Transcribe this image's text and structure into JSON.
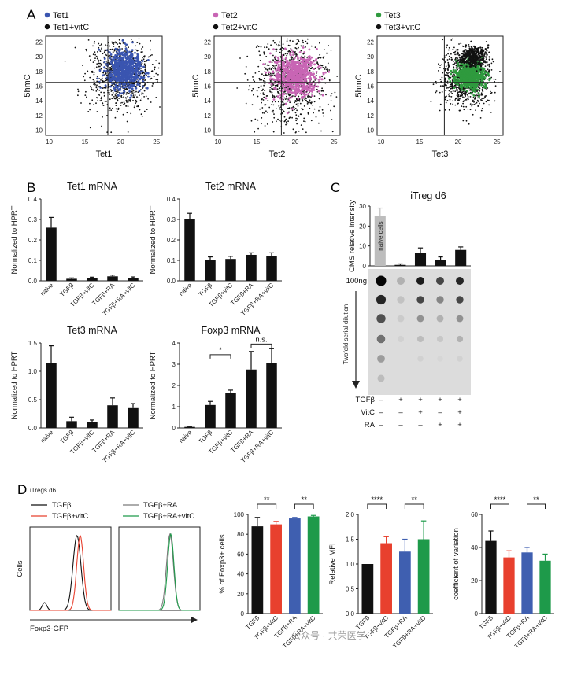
{
  "panels": {
    "a": "A",
    "b": "B",
    "c": "C",
    "d": "D"
  },
  "colors": {
    "tet1": "#3a55b0",
    "tet2": "#c865b4",
    "tet3": "#2f9a3e",
    "black": "#111111",
    "red": "#e8402e",
    "blue": "#3f5fb0",
    "green": "#1e9a4a",
    "naive_bar": "#bdbdbd",
    "blot_bg": "#dcdcdc"
  },
  "panel_a": {
    "plots": [
      {
        "legend_tet": "Tet1",
        "legend_vitc": "Tet1+vitC",
        "xlabel": "Tet1",
        "ylabel": "5hmC",
        "color_key": "tet1"
      },
      {
        "legend_tet": "Tet2",
        "legend_vitc": "Tet2+vitC",
        "xlabel": "Tet2",
        "ylabel": "5hmC",
        "color_key": "tet2"
      },
      {
        "legend_tet": "Tet3",
        "legend_vitc": "Tet3+vitC",
        "xlabel": "Tet3",
        "ylabel": "5hmC",
        "color_key": "tet3"
      }
    ],
    "xticks": [
      "10",
      "15",
      "20",
      "25"
    ],
    "yticks": [
      "10",
      "12",
      "14",
      "16",
      "18",
      "20",
      "22"
    ]
  },
  "panel_c": {
    "title": "iTreg d6",
    "ylabel": "CMS relative intensity",
    "naive_label": "naive cells",
    "dose_label": "100ng",
    "dilution_label": "Twofold serial dilution",
    "yticks": [
      "0",
      "10",
      "20",
      "30"
    ],
    "row_labels": [
      "TGFβ",
      "VitC",
      "RA"
    ],
    "signs": [
      [
        "–",
        "+",
        "+",
        "+",
        "+"
      ],
      [
        "–",
        "–",
        "+",
        "–",
        "+"
      ],
      [
        "–",
        "–",
        "–",
        "+",
        "+"
      ]
    ]
  },
  "panel_d": {
    "header": "iTregs d6",
    "legend": [
      "TGFβ",
      "TGFβ+vitC",
      "TGFβ+RA",
      "TGFβ+RA+vitC"
    ],
    "hist_ylabel": "Cells",
    "hist_xlabel": "Foxp3-GFP",
    "sig1": "**",
    "sig2": "**",
    "sig3": "****",
    "sig4": "**",
    "sig5": "****",
    "sig6": "**"
  },
  "watermark": "公众号 · 共荣医学",
  "chart_data": [
    {
      "id": "tet1_mrna",
      "type": "bar",
      "title": "Tet1 mRNA",
      "ylabel": "Normalized to HPRT",
      "categories": [
        "naive",
        "TGFβ",
        "TGFβ+vitC",
        "TGFβ+RA",
        "TGFβ+RA+vitC"
      ],
      "values": [
        0.26,
        0.01,
        0.012,
        0.022,
        0.015
      ],
      "errors": [
        0.05,
        0.004,
        0.006,
        0.006,
        0.004
      ],
      "ylim": [
        0,
        0.4
      ],
      "yticks": [
        0,
        0.1,
        0.2,
        0.3,
        0.4
      ],
      "ytick_labels": [
        "0.0",
        "0.1",
        "0.2",
        "0.3",
        "0.4"
      ]
    },
    {
      "id": "tet2_mrna",
      "type": "bar",
      "title": "Tet2 mRNA",
      "ylabel": "Normalized to HPRT",
      "categories": [
        "naive",
        "TGFβ",
        "TGFβ+vitC",
        "TGFβ+RA",
        "TGFβ+RA+vitC"
      ],
      "values": [
        0.3,
        0.1,
        0.107,
        0.127,
        0.122
      ],
      "errors": [
        0.03,
        0.017,
        0.013,
        0.01,
        0.015
      ],
      "ylim": [
        0,
        0.4
      ],
      "yticks": [
        0,
        0.1,
        0.2,
        0.3,
        0.4
      ],
      "ytick_labels": [
        "0.0",
        "0.1",
        "0.2",
        "0.3",
        "0.4"
      ]
    },
    {
      "id": "tet3_mrna",
      "type": "bar",
      "title": "Tet3 mRNA",
      "ylabel": "Normalized to HPRT",
      "categories": [
        "naive",
        "TGFβ",
        "TGFβ+vitC",
        "TGFβ+RA",
        "TGFβ+RA+vitC"
      ],
      "values": [
        1.15,
        0.12,
        0.1,
        0.4,
        0.35
      ],
      "errors": [
        0.3,
        0.07,
        0.04,
        0.13,
        0.08
      ],
      "ylim": [
        0,
        1.5
      ],
      "yticks": [
        0,
        0.5,
        1.0,
        1.5
      ],
      "ytick_labels": [
        "0.0",
        "0.5",
        "1.0",
        "1.5"
      ]
    },
    {
      "id": "foxp3_mrna",
      "type": "bar",
      "title": "Foxp3 mRNA",
      "ylabel": "Normalized to HPRT",
      "categories": [
        "naive",
        "TGFβ",
        "TGFβ+vitC",
        "TGFβ+RA",
        "TGFβ+RA+vitC"
      ],
      "values": [
        0.05,
        1.08,
        1.65,
        2.75,
        3.05
      ],
      "errors": [
        0.02,
        0.17,
        0.13,
        0.85,
        0.68
      ],
      "ylim": [
        0,
        4
      ],
      "yticks": [
        0,
        1,
        2,
        3,
        4
      ],
      "ytick_labels": [
        "0",
        "1",
        "2",
        "3",
        "4"
      ],
      "annotations": [
        "*",
        "n.s."
      ]
    },
    {
      "id": "cms_intensity",
      "type": "bar",
      "title": "iTreg d6",
      "ylabel": "CMS relative intensity",
      "categories": [
        "naive cells",
        "TGFβ",
        "TGFβ+VitC",
        "TGFβ+RA",
        "TGFβ+RA+VitC"
      ],
      "values": [
        25,
        0.5,
        6.5,
        3,
        8
      ],
      "errors": [
        4,
        0.5,
        2.5,
        1.5,
        1.5
      ],
      "ylim": [
        0,
        30
      ],
      "yticks": [
        0,
        10,
        20,
        30
      ]
    },
    {
      "id": "pct_foxp3",
      "type": "bar",
      "ylabel": "% of Foxp3+ cells",
      "categories": [
        "TGFβ",
        "TGFβ+vitC",
        "TGFβ+RA",
        "TGFβ+RA+vitC"
      ],
      "values": [
        88,
        90,
        96,
        98
      ],
      "errors": [
        9,
        3,
        1,
        1
      ],
      "ylim": [
        0,
        100
      ],
      "yticks": [
        0,
        20,
        40,
        60,
        80,
        100
      ]
    },
    {
      "id": "relative_mfi",
      "type": "bar",
      "ylabel": "Relative MFI",
      "categories": [
        "TGFβ",
        "TGFβ+vitC",
        "TGFβ+RA",
        "TGFβ+RA+vitC"
      ],
      "values": [
        1.0,
        1.42,
        1.25,
        1.5
      ],
      "errors": [
        0,
        0.13,
        0.25,
        0.37
      ],
      "ylim": [
        0,
        2.0
      ],
      "yticks": [
        0,
        0.5,
        1.0,
        1.5,
        2.0
      ],
      "ytick_labels": [
        "0.0",
        "0.5",
        "1.0",
        "1.5",
        "2.0"
      ]
    },
    {
      "id": "cv",
      "type": "bar",
      "ylabel": "coefficient of variation",
      "categories": [
        "TGFβ",
        "TGFβ+vitC",
        "TGFβ+RA",
        "TGFβ+RA+vitC"
      ],
      "values": [
        44,
        34,
        37,
        32
      ],
      "errors": [
        6,
        4,
        3,
        4
      ],
      "ylim": [
        0,
        60
      ],
      "yticks": [
        0,
        20,
        40,
        60
      ]
    }
  ]
}
